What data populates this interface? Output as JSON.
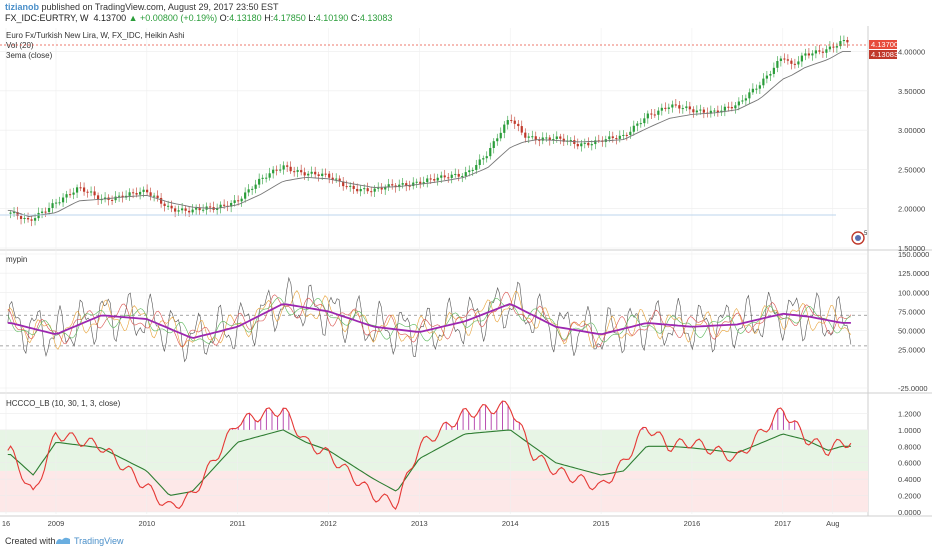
{
  "header": {
    "author": "tizianob",
    "published": "published on TradingView.com, August 29, 2017 23:50 EST",
    "symbol": "FX_IDC:EURTRY, W",
    "last": "4.13700",
    "arrow": "▲",
    "change": "+0.00800 (+0.19%)",
    "o_label": "O:",
    "o": "4.13180",
    "h_label": "H:",
    "h": "4.17850",
    "l_label": "L:",
    "l": "4.10190",
    "c_label": "C:",
    "c": "4.13083"
  },
  "footer": {
    "created": "Created with",
    "brand": "TradingView"
  },
  "colors": {
    "up_candle": "#2a9d3a",
    "down_candle": "#c0392b",
    "ema": "#777777",
    "mypin_purple": "#9c27b0",
    "hccco_red": "#e53935",
    "hccco_green": "#2e7d32",
    "green_zone": "#e7f5e5",
    "red_zone": "#fde8e8",
    "price_tag": "#e74c3c"
  },
  "chart_data": [
    {
      "type": "line",
      "panel": "price",
      "title": "Euro Fx/Turkish New Lira, W, FX_IDC, Heikin Ashi",
      "legend": [
        "Vol (20)",
        "3ema (close)"
      ],
      "ylabel": "",
      "y_ticks": [
        "4.00000",
        "3.50000",
        "3.00000",
        "2.50000",
        "2.00000",
        "1.50000"
      ],
      "ylim": [
        1.5,
        4.3
      ],
      "last_value_tags": [
        "4.13700",
        "4.13083"
      ],
      "x": [
        2008.5,
        2008.7,
        2009.0,
        2009.25,
        2009.5,
        2009.75,
        2010.0,
        2010.25,
        2010.5,
        2010.75,
        2011.0,
        2011.25,
        2011.5,
        2011.75,
        2012.0,
        2012.25,
        2012.5,
        2012.75,
        2013.0,
        2013.25,
        2013.5,
        2013.75,
        2014.0,
        2014.15,
        2014.3,
        2014.5,
        2014.75,
        2015.0,
        2015.25,
        2015.5,
        2015.75,
        2016.0,
        2016.25,
        2016.5,
        2016.75,
        2017.0,
        2017.1,
        2017.25,
        2017.5,
        2017.65
      ],
      "series": [
        {
          "values": [
            1.95,
            1.82,
            2.1,
            2.25,
            2.12,
            2.18,
            2.2,
            2.02,
            1.97,
            2.0,
            2.12,
            2.35,
            2.55,
            2.45,
            2.4,
            2.28,
            2.22,
            2.3,
            2.35,
            2.38,
            2.45,
            2.7,
            3.15,
            2.95,
            2.9,
            2.88,
            2.82,
            2.88,
            2.9,
            3.2,
            3.3,
            3.25,
            3.25,
            3.3,
            3.6,
            3.95,
            3.8,
            3.95,
            4.05,
            4.13
          ]
        },
        {
          "values": [
            1.98,
            1.9,
            1.95,
            2.1,
            2.12,
            2.15,
            2.17,
            2.08,
            2.02,
            2.0,
            2.05,
            2.18,
            2.35,
            2.4,
            2.38,
            2.32,
            2.27,
            2.28,
            2.31,
            2.35,
            2.4,
            2.52,
            2.78,
            2.85,
            2.88,
            2.87,
            2.85,
            2.86,
            2.88,
            3.02,
            3.15,
            3.2,
            3.22,
            3.26,
            3.4,
            3.65,
            3.7,
            3.8,
            3.9,
            4.0
          ]
        }
      ]
    },
    {
      "type": "line",
      "panel": "indicator",
      "title": "mypin",
      "y_ticks": [
        "150.0000",
        "125.0000",
        "100.0000",
        "75.0000",
        "50.0000",
        "25.0000",
        "-25.0000"
      ],
      "ylim": [
        -25,
        150
      ],
      "reference_lines": [
        70,
        30
      ],
      "x": [
        2008.5,
        2009.0,
        2009.5,
        2010.0,
        2010.5,
        2011.0,
        2011.5,
        2012.0,
        2012.5,
        2013.0,
        2013.5,
        2014.0,
        2014.5,
        2015.0,
        2015.5,
        2016.0,
        2016.5,
        2017.0,
        2017.3,
        2017.65
      ],
      "series": [
        {
          "values": [
            60,
            45,
            70,
            65,
            40,
            55,
            85,
            75,
            55,
            48,
            62,
            85,
            55,
            45,
            60,
            55,
            58,
            72,
            68,
            60
          ]
        }
      ]
    },
    {
      "type": "line",
      "panel": "indicator",
      "title": "HCCCO_LB (10, 30, 1, 3, close)",
      "y_ticks": [
        "1.2000",
        "1.0000",
        "0.8000",
        "0.6000",
        "0.4000",
        "0.2000",
        "0.0000"
      ],
      "ylim": [
        0.0,
        1.4
      ],
      "x": [
        2008.5,
        2008.75,
        2009.0,
        2009.5,
        2010.0,
        2010.25,
        2010.5,
        2011.0,
        2011.5,
        2011.75,
        2012.0,
        2012.5,
        2012.75,
        2013.0,
        2013.5,
        2014.0,
        2014.25,
        2014.5,
        2015.0,
        2015.25,
        2015.5,
        2015.75,
        2016.0,
        2016.5,
        2017.0,
        2017.25,
        2017.5,
        2017.65
      ],
      "series": [
        {
          "values": [
            0.75,
            0.2,
            0.95,
            0.8,
            0.3,
            0.05,
            0.2,
            1.1,
            1.25,
            0.85,
            0.7,
            0.2,
            0.1,
            0.8,
            1.2,
            1.3,
            0.7,
            0.5,
            0.3,
            0.6,
            1.05,
            0.8,
            0.85,
            0.65,
            1.25,
            0.9,
            0.75,
            0.85
          ]
        },
        {
          "values": [
            0.7,
            0.45,
            0.85,
            0.78,
            0.5,
            0.2,
            0.25,
            0.85,
            1.0,
            0.85,
            0.75,
            0.4,
            0.25,
            0.65,
            0.95,
            1.0,
            0.8,
            0.6,
            0.45,
            0.5,
            0.8,
            0.8,
            0.78,
            0.72,
            0.95,
            0.88,
            0.75,
            0.8
          ]
        }
      ]
    }
  ],
  "x_axis_labels": [
    "16",
    "2009",
    "2010",
    "2011",
    "2012",
    "2013",
    "2014",
    "2015",
    "2016",
    "2017",
    "Aug"
  ]
}
